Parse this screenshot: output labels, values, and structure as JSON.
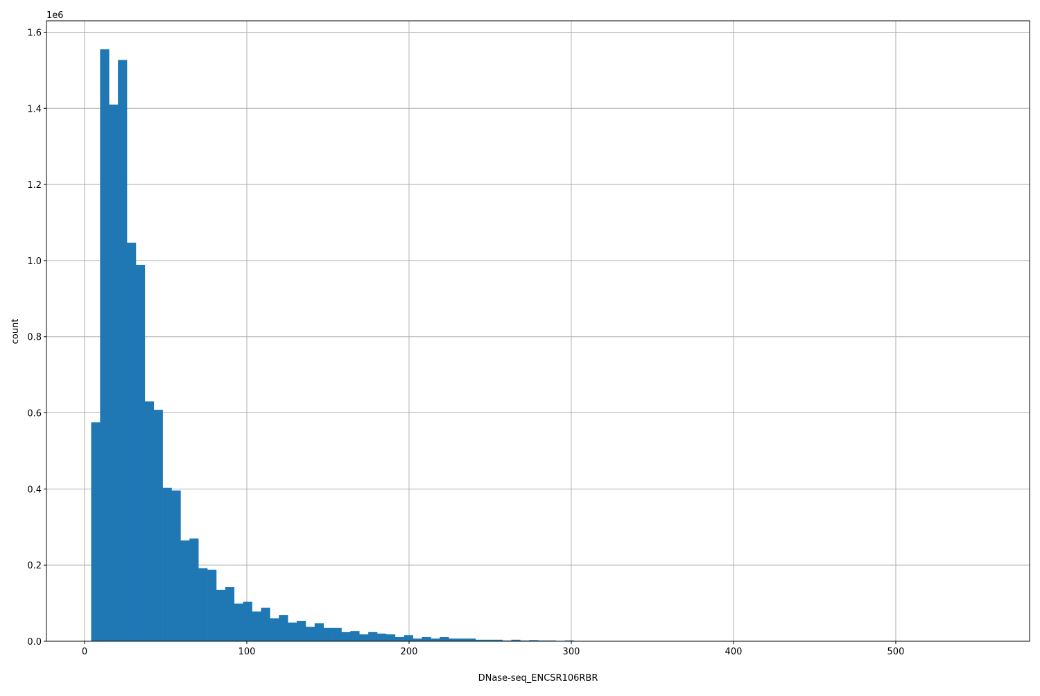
{
  "chart_data": {
    "type": "bar",
    "histogram": true,
    "title": "",
    "xlabel": "DNase-seq_ENCSR106RBR",
    "ylabel": "count",
    "y_offset_text": "1e6",
    "xlim": [
      -23.5,
      582.5
    ],
    "ylim": [
      0,
      1630000
    ],
    "grid": true,
    "bar_color": "#1f77b4",
    "grid_color": "#b0b0b0",
    "bin_start": 4.05,
    "bin_width": 5.51,
    "x_ticks": [
      0,
      100,
      200,
      300,
      400,
      500
    ],
    "x_tick_labels": [
      "0",
      "100",
      "200",
      "300",
      "400",
      "500"
    ],
    "y_ticks": [
      0,
      200000,
      400000,
      600000,
      800000,
      1000000,
      1200000,
      1400000,
      1600000
    ],
    "y_tick_labels": [
      "0.0",
      "0.2",
      "0.4",
      "0.6",
      "0.8",
      "1.0",
      "1.2",
      "1.4",
      "1.6"
    ],
    "values": [
      575000,
      1555000,
      1410000,
      1527000,
      1047000,
      989000,
      630000,
      608000,
      403000,
      396000,
      265000,
      270000,
      192000,
      188000,
      135000,
      142000,
      99000,
      104000,
      78000,
      88000,
      60000,
      69000,
      49000,
      53000,
      38000,
      47000,
      35000,
      35000,
      24000,
      27000,
      18000,
      24000,
      20000,
      18000,
      11000,
      16000,
      7000,
      11000,
      7000,
      11000,
      7000,
      7000,
      7000,
      4000,
      4000,
      4000,
      2000,
      4000,
      2000,
      3000,
      2000,
      2000,
      1000,
      2000,
      800,
      500,
      400,
      300,
      0,
      0,
      0,
      0,
      0,
      0,
      0,
      0,
      0,
      0,
      0,
      0,
      0,
      0,
      0,
      0,
      0,
      0,
      0,
      0,
      0,
      0,
      0,
      0,
      0,
      0,
      0,
      0,
      0,
      0,
      0,
      0,
      0,
      0,
      0,
      0,
      0,
      0,
      0,
      0,
      0,
      0
    ]
  }
}
